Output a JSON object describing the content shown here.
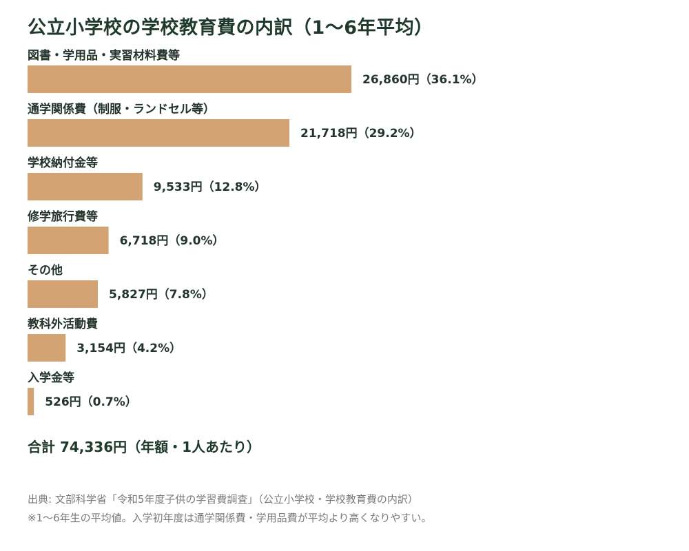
{
  "title": "公立小学校の学校教育費の内訳（1〜6年平均）",
  "total": "合計 74,336円（年額・1人あたり）",
  "notes": [
    "出典: 文部科学省「令和5年度子供の学習費調査」（公立小学校・学校教育費の内訳）",
    "※1〜6年生の平均値。入学初年度は通学関係費・学用品費が平均より高くなりやすい。"
  ],
  "colors": {
    "bar": "#d4a373",
    "text": "#23342b",
    "title": "#1f3a2c",
    "note": "#7a7a7a"
  },
  "chart_data": {
    "type": "bar",
    "orientation": "horizontal",
    "title": "公立小学校の学校教育費の内訳（1〜6年平均）",
    "categories": [
      "図書・学用品・実習材料費等",
      "通学関係費（制服・ランドセル等）",
      "学校納付金等",
      "修学旅行費等",
      "その他",
      "教科外活動費",
      "入学金等"
    ],
    "values": [
      26860,
      21718,
      9533,
      6718,
      5827,
      3154,
      526
    ],
    "value_labels": [
      "26,860円（36.1%）",
      "21,718円（29.2%）",
      "9,533円（12.8%）",
      "6,718円（9.0%）",
      "5,827円（7.8%）",
      "3,154円（4.2%）",
      "526円（0.7%）"
    ],
    "xlim": [
      0,
      26860
    ],
    "grid": false,
    "legend": "none",
    "xlabel": "",
    "ylabel": ""
  }
}
